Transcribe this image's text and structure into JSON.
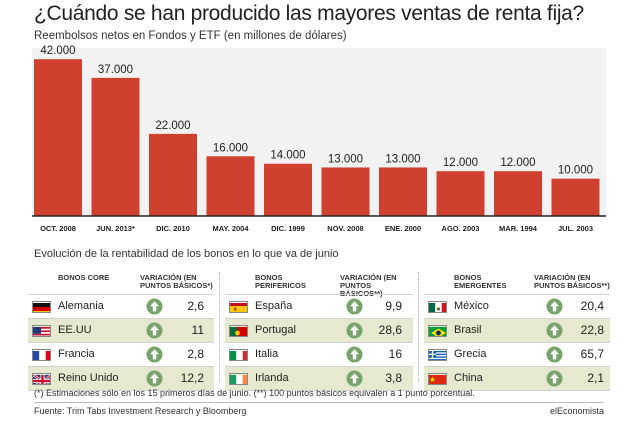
{
  "header": {
    "title": "¿Cuándo se han producido las mayores ventas de renta fija?",
    "subtitle": "Reembolsos netos en Fondos y ETF (en millones de dólares)"
  },
  "colors": {
    "bar": "#d0402e",
    "plot_bg": "#f2f2f2",
    "arrow": "#77a56b",
    "row_shade": "#e6e8cf"
  },
  "chart_data": {
    "type": "bar",
    "title": "¿Cuándo se han producido las mayores ventas de renta fija?",
    "subtitle": "Reembolsos netos en Fondos y ETF (en millones de dólares)",
    "categories": [
      "OCT. 2008",
      "JUN. 2013*",
      "DIC. 2010",
      "MAY. 2004",
      "DIC. 1999",
      "NOV. 2008",
      "ENE. 2000",
      "AGO. 2003",
      "MAR. 1994",
      "JUL. 2003"
    ],
    "values": [
      42000,
      37000,
      22000,
      16000,
      14000,
      13000,
      13000,
      12000,
      12000,
      10000
    ],
    "value_labels": [
      "42.000",
      "37.000",
      "22.000",
      "16.000",
      "14.000",
      "13.000",
      "13.000",
      "12.000",
      "12.000",
      "10.000"
    ],
    "ylim": [
      0,
      45000
    ],
    "grid": false,
    "legend": "none"
  },
  "table": {
    "heading": "Evolución de la rentabilidad de los bonos en lo que va de junio",
    "groups": [
      {
        "name_header": "BONOS CORE",
        "var_header": "VARIACIÓN (EN\nPUNTOS BÁSICOS*)",
        "rows": [
          {
            "country": "Alemania",
            "value": "2,6",
            "flag": "de-flag"
          },
          {
            "country": "EE.UU",
            "value": "11",
            "flag": "us-flag"
          },
          {
            "country": "Francia",
            "value": "2,8",
            "flag": "fr-flag"
          },
          {
            "country": "Reino Unido",
            "value": "12,2",
            "flag": "uk-flag"
          }
        ]
      },
      {
        "name_header": "BONOS\nPERIFERICOS",
        "var_header": "VARIACIÓN (EN\nPUNTOS BÁSICOS**)",
        "rows": [
          {
            "country": "España",
            "value": "9,9",
            "flag": "es-flag"
          },
          {
            "country": "Portugal",
            "value": "28,6",
            "flag": "pt-flag"
          },
          {
            "country": "Italia",
            "value": "16",
            "flag": "it-flag"
          },
          {
            "country": "Irlanda",
            "value": "3,8",
            "flag": "ie-flag"
          }
        ]
      },
      {
        "name_header": "BONOS\nEMERGENTES",
        "var_header": "VARIACIÓN (EN\nPUNTOS BÁSICOS**)",
        "rows": [
          {
            "country": "México",
            "value": "20,4",
            "flag": "mx-flag"
          },
          {
            "country": "Brasil",
            "value": "22,8",
            "flag": "br-flag"
          },
          {
            "country": "Grecia",
            "value": "65,7",
            "flag": "gr-flag"
          },
          {
            "country": "China",
            "value": "2,1",
            "flag": "cn-flag"
          }
        ]
      }
    ],
    "arrow_icon": "up-arrow-icon"
  },
  "footer": {
    "notes": "(*) Estimaciones sólo en los 15 primeros días de junio.   (**) 100 puntos básicos equivalen a 1 punto porcentual.",
    "source": "Fuente: Trim Tabs Investment Research y Bloomberg",
    "brand": "elEconomista"
  }
}
